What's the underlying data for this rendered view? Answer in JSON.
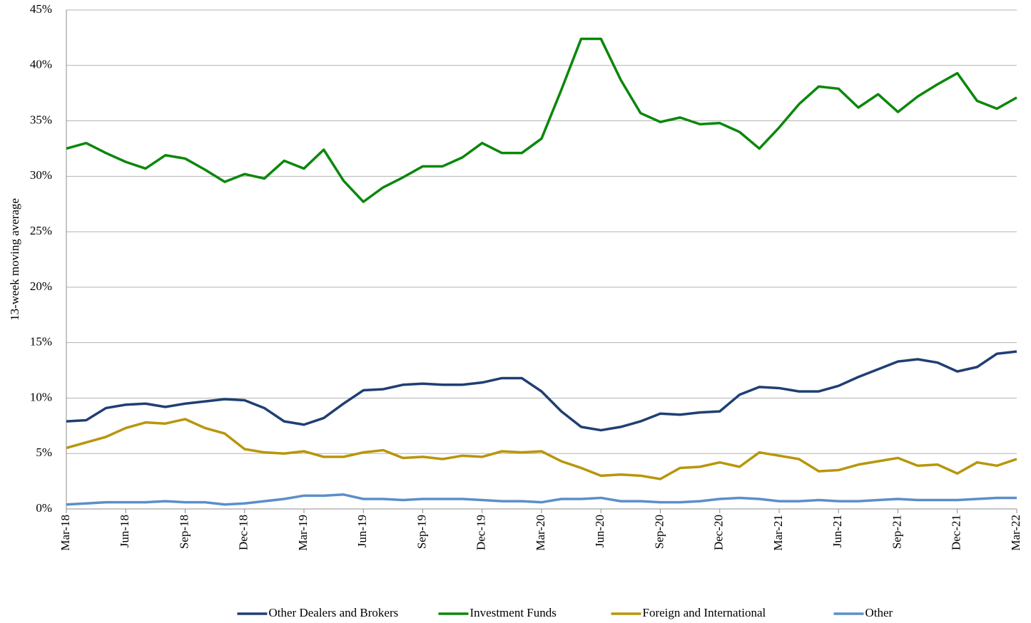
{
  "chart_data": {
    "type": "line",
    "y_label": "13-week moving average",
    "categories": [
      "Mar-18",
      null,
      null,
      "Jun-18",
      null,
      null,
      "Sep-18",
      null,
      null,
      "Dec-18",
      null,
      null,
      "Mar-19",
      null,
      null,
      "Jun-19",
      null,
      null,
      "Sep-19",
      null,
      null,
      "Dec-19",
      null,
      null,
      "Mar-20",
      null,
      null,
      "Jun-20",
      null,
      null,
      "Sep-20",
      null,
      null,
      "Dec-20",
      null,
      null,
      "Mar-21",
      null,
      null,
      "Jun-21",
      null,
      null,
      "Sep-21",
      null,
      null,
      "Dec-21",
      null,
      null,
      "Mar-22"
    ],
    "series": [
      {
        "name": "Other Dealers and Brokers",
        "color": "#1f3f73",
        "values": [
          7.9,
          8.0,
          9.1,
          9.4,
          9.5,
          9.2,
          9.5,
          9.7,
          9.9,
          9.8,
          9.1,
          7.9,
          7.6,
          8.2,
          9.5,
          10.7,
          10.8,
          11.2,
          11.3,
          11.2,
          11.2,
          11.4,
          11.8,
          11.8,
          10.6,
          8.8,
          7.4,
          7.1,
          7.4,
          7.9,
          8.6,
          8.5,
          8.7,
          8.8,
          10.3,
          11.0,
          10.9,
          10.6,
          10.6,
          11.1,
          11.9,
          12.6,
          13.3,
          13.5,
          13.2,
          12.4,
          12.8,
          14.0,
          14.2
        ]
      },
      {
        "name": "Investment Funds",
        "color": "#0b870b",
        "values": [
          32.5,
          33.0,
          32.1,
          31.3,
          30.7,
          31.9,
          31.6,
          30.6,
          29.5,
          30.2,
          29.8,
          31.4,
          30.7,
          32.4,
          29.6,
          27.7,
          29.0,
          29.9,
          30.9,
          30.9,
          31.7,
          33.0,
          32.1,
          32.1,
          33.4,
          37.8,
          42.4,
          42.4,
          38.7,
          35.7,
          34.9,
          35.3,
          34.7,
          34.8,
          34.0,
          32.5,
          34.4,
          36.5,
          38.1,
          37.9,
          36.2,
          37.4,
          35.8,
          37.2,
          38.3,
          39.3,
          36.8,
          36.1,
          37.1
        ]
      },
      {
        "name": "Foreign and International",
        "color": "#b8960c",
        "values": [
          5.5,
          6.0,
          6.5,
          7.3,
          7.8,
          7.7,
          8.1,
          7.3,
          6.8,
          5.4,
          5.1,
          5.0,
          5.2,
          4.7,
          4.7,
          5.1,
          5.3,
          4.6,
          4.7,
          4.5,
          4.8,
          4.7,
          5.2,
          5.1,
          5.2,
          4.3,
          3.7,
          3.0,
          3.1,
          3.0,
          2.7,
          3.7,
          3.8,
          4.2,
          3.8,
          5.1,
          4.8,
          4.5,
          3.4,
          3.5,
          4.0,
          4.3,
          4.6,
          3.9,
          4.0,
          3.2,
          4.2,
          3.9,
          4.5
        ]
      },
      {
        "name": "Other",
        "color": "#5b8fc9",
        "values": [
          0.4,
          0.5,
          0.6,
          0.6,
          0.6,
          0.7,
          0.6,
          0.6,
          0.4,
          0.5,
          0.7,
          0.9,
          1.2,
          1.2,
          1.3,
          0.9,
          0.9,
          0.8,
          0.9,
          0.9,
          0.9,
          0.8,
          0.7,
          0.7,
          0.6,
          0.9,
          0.9,
          1.0,
          0.7,
          0.7,
          0.6,
          0.6,
          0.7,
          0.9,
          1.0,
          0.9,
          0.7,
          0.7,
          0.8,
          0.7,
          0.7,
          0.8,
          0.9,
          0.8,
          0.8,
          0.8,
          0.9,
          1.0,
          1.0
        ]
      }
    ],
    "ylim": [
      0,
      45
    ],
    "yticks": [
      {
        "value": 0,
        "label": "0%"
      },
      {
        "value": 5,
        "label": "5%"
      },
      {
        "value": 10,
        "label": "10%"
      },
      {
        "value": 15,
        "label": "15%"
      },
      {
        "value": 20,
        "label": "20%"
      },
      {
        "value": 25,
        "label": "25%"
      },
      {
        "value": 30,
        "label": "30%"
      },
      {
        "value": 35,
        "label": "35%"
      },
      {
        "value": 40,
        "label": "40%"
      },
      {
        "value": 45,
        "label": "45%"
      }
    ],
    "grid": true,
    "legend": "bottom"
  }
}
